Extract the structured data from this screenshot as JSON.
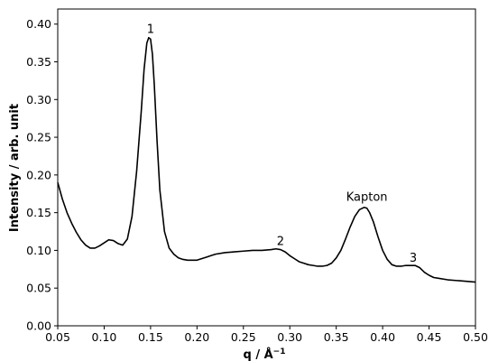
{
  "chart_data": {
    "type": "line",
    "title": "",
    "xlabel": "q / Å",
    "xlabel_sup": "−1",
    "ylabel": "Intensity / arb. unit",
    "xlim": [
      0.05,
      0.5
    ],
    "ylim": [
      0.0,
      0.42
    ],
    "grid": false,
    "x_ticks": [
      0.05,
      0.1,
      0.15,
      0.2,
      0.25,
      0.3,
      0.35,
      0.4,
      0.45,
      0.5
    ],
    "x_tick_labels": [
      "0.05",
      "0.10",
      "0.15",
      "0.20",
      "0.25",
      "0.30",
      "0.35",
      "0.40",
      "0.45",
      "0.50"
    ],
    "y_ticks": [
      0.0,
      0.05,
      0.1,
      0.15,
      0.2,
      0.25,
      0.3,
      0.35,
      0.4
    ],
    "y_tick_labels": [
      "0.00",
      "0.05",
      "0.10",
      "0.15",
      "0.20",
      "0.25",
      "0.30",
      "0.35",
      "0.40"
    ],
    "series": [
      {
        "color": "#000000",
        "x": [
          0.05,
          0.055,
          0.06,
          0.065,
          0.07,
          0.075,
          0.08,
          0.085,
          0.09,
          0.095,
          0.1,
          0.105,
          0.11,
          0.115,
          0.12,
          0.125,
          0.13,
          0.135,
          0.14,
          0.143,
          0.146,
          0.148,
          0.15,
          0.152,
          0.154,
          0.157,
          0.16,
          0.165,
          0.17,
          0.175,
          0.18,
          0.185,
          0.19,
          0.195,
          0.2,
          0.205,
          0.21,
          0.215,
          0.22,
          0.23,
          0.24,
          0.25,
          0.26,
          0.27,
          0.28,
          0.285,
          0.29,
          0.295,
          0.3,
          0.305,
          0.31,
          0.315,
          0.32,
          0.325,
          0.33,
          0.335,
          0.34,
          0.345,
          0.35,
          0.355,
          0.36,
          0.365,
          0.37,
          0.375,
          0.38,
          0.383,
          0.386,
          0.39,
          0.395,
          0.4,
          0.405,
          0.41,
          0.415,
          0.42,
          0.425,
          0.43,
          0.435,
          0.44,
          0.445,
          0.45,
          0.455,
          0.46,
          0.47,
          0.48,
          0.49,
          0.5
        ],
        "y": [
          0.19,
          0.168,
          0.15,
          0.136,
          0.124,
          0.114,
          0.107,
          0.103,
          0.103,
          0.106,
          0.11,
          0.114,
          0.113,
          0.109,
          0.107,
          0.115,
          0.145,
          0.205,
          0.285,
          0.34,
          0.375,
          0.382,
          0.38,
          0.36,
          0.32,
          0.245,
          0.18,
          0.125,
          0.103,
          0.095,
          0.09,
          0.088,
          0.087,
          0.087,
          0.087,
          0.089,
          0.091,
          0.093,
          0.095,
          0.097,
          0.098,
          0.099,
          0.1,
          0.1,
          0.101,
          0.102,
          0.101,
          0.098,
          0.093,
          0.089,
          0.085,
          0.083,
          0.081,
          0.08,
          0.079,
          0.079,
          0.08,
          0.083,
          0.09,
          0.1,
          0.115,
          0.131,
          0.145,
          0.154,
          0.157,
          0.156,
          0.15,
          0.138,
          0.118,
          0.1,
          0.088,
          0.081,
          0.079,
          0.079,
          0.08,
          0.08,
          0.08,
          0.077,
          0.071,
          0.067,
          0.064,
          0.063,
          0.061,
          0.06,
          0.059,
          0.058
        ]
      }
    ],
    "annotations": [
      {
        "text": "1",
        "x": 0.15,
        "y": 0.388
      },
      {
        "text": "2",
        "x": 0.29,
        "y": 0.107
      },
      {
        "text": "Kapton",
        "x": 0.383,
        "y": 0.166
      },
      {
        "text": "3",
        "x": 0.433,
        "y": 0.085
      }
    ]
  }
}
